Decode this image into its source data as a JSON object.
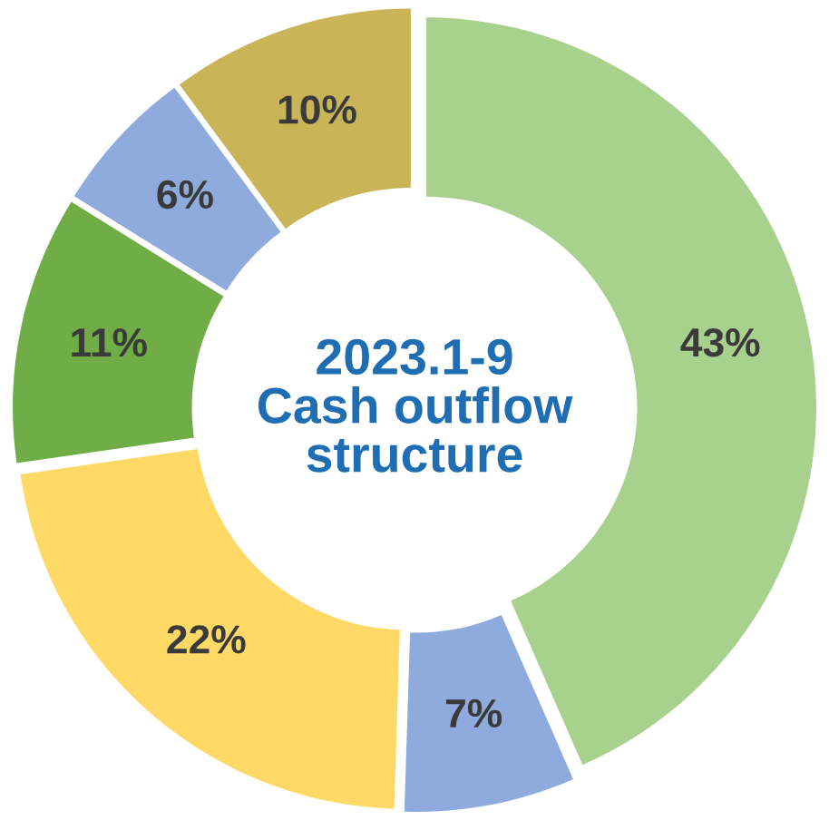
{
  "chart_data": {
    "type": "donut",
    "title": "2023.1-9\nCash outflow\nstructure",
    "categories": [
      null,
      null,
      null,
      null,
      null,
      null
    ],
    "values": [
      43,
      7,
      22,
      11,
      6,
      10
    ],
    "value_labels": [
      "43%",
      "7%",
      "22%",
      "11%",
      "6%",
      "10%"
    ],
    "colors": [
      "#a9d18e",
      "#8faadc",
      "#ffd966",
      "#70ad47",
      "#8faadc",
      "#c9b458"
    ],
    "legend": false
  }
}
